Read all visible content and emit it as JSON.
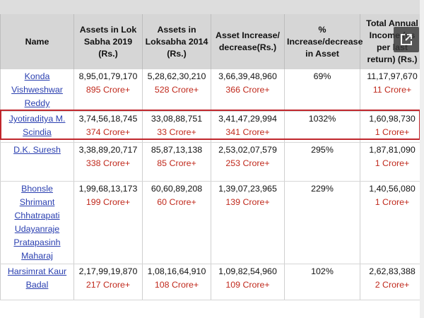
{
  "table": {
    "headers": {
      "name": "Name",
      "assets_2019": "Assets in Lok Sabha 2019 (Rs.)",
      "assets_2014": "Assets in Loksabha 2014 (Rs.)",
      "increase": "Asset Increase/ decrease(Rs.)",
      "percent": "% Increase/decrease in Asset",
      "income": "Total Annual Income (as per last return) (Rs.)"
    },
    "rows": [
      {
        "name": "Konda Vishweshwar Reddy",
        "assets_2019": "8,95,01,79,170",
        "assets_2019_crore": "895 Crore+",
        "assets_2014": "5,28,62,30,210",
        "assets_2014_crore": "528 Crore+",
        "increase": "3,66,39,48,960",
        "increase_crore": "366 Crore+",
        "percent": "69%",
        "income": "11,17,97,670",
        "income_crore": "11 Crore+"
      },
      {
        "name": "Jyotiraditya M. Scindia",
        "assets_2019": "3,74,56,18,745",
        "assets_2019_crore": "374 Crore+",
        "assets_2014": "33,08,88,751",
        "assets_2014_crore": "33 Crore+",
        "increase": "3,41,47,29,994",
        "increase_crore": "341 Crore+",
        "percent": "1032%",
        "income": "1,60,98,730",
        "income_crore": "1 Crore+"
      },
      {
        "name": "D.K. Suresh",
        "assets_2019": "3,38,89,20,717",
        "assets_2019_crore": "338 Crore+",
        "assets_2014": "85,87,13,138",
        "assets_2014_crore": "85 Crore+",
        "increase": "2,53,02,07,579",
        "increase_crore": "253 Crore+",
        "percent": "295%",
        "income": "1,87,81,090",
        "income_crore": "1 Crore+"
      },
      {
        "name": "Bhonsle Shrimant Chhatrapati Udayanraje Pratapasinh Maharaj",
        "assets_2019": "1,99,68,13,173",
        "assets_2019_crore": "199 Crore+",
        "assets_2014": "60,60,89,208",
        "assets_2014_crore": "60 Crore+",
        "increase": "1,39,07,23,965",
        "increase_crore": "139 Crore+",
        "percent": "229%",
        "income": "1,40,56,080",
        "income_crore": "1 Crore+"
      },
      {
        "name": "Harsimrat Kaur Badal",
        "assets_2019": "2,17,99,19,870",
        "assets_2019_crore": "217 Crore+",
        "assets_2014": "1,08,16,64,910",
        "assets_2014_crore": "108 Crore+",
        "increase": "1,09,82,54,960",
        "increase_crore": "109 Crore+",
        "percent": "102%",
        "income": "2,62,83,388",
        "income_crore": "2 Crore+"
      }
    ]
  },
  "icons": {
    "expand": "expand-icon"
  },
  "colors": {
    "crore_text": "#c0291c",
    "link_text": "#2a3fb0",
    "highlight_border": "#c0262c",
    "header_bg": "#d6d6d6"
  }
}
